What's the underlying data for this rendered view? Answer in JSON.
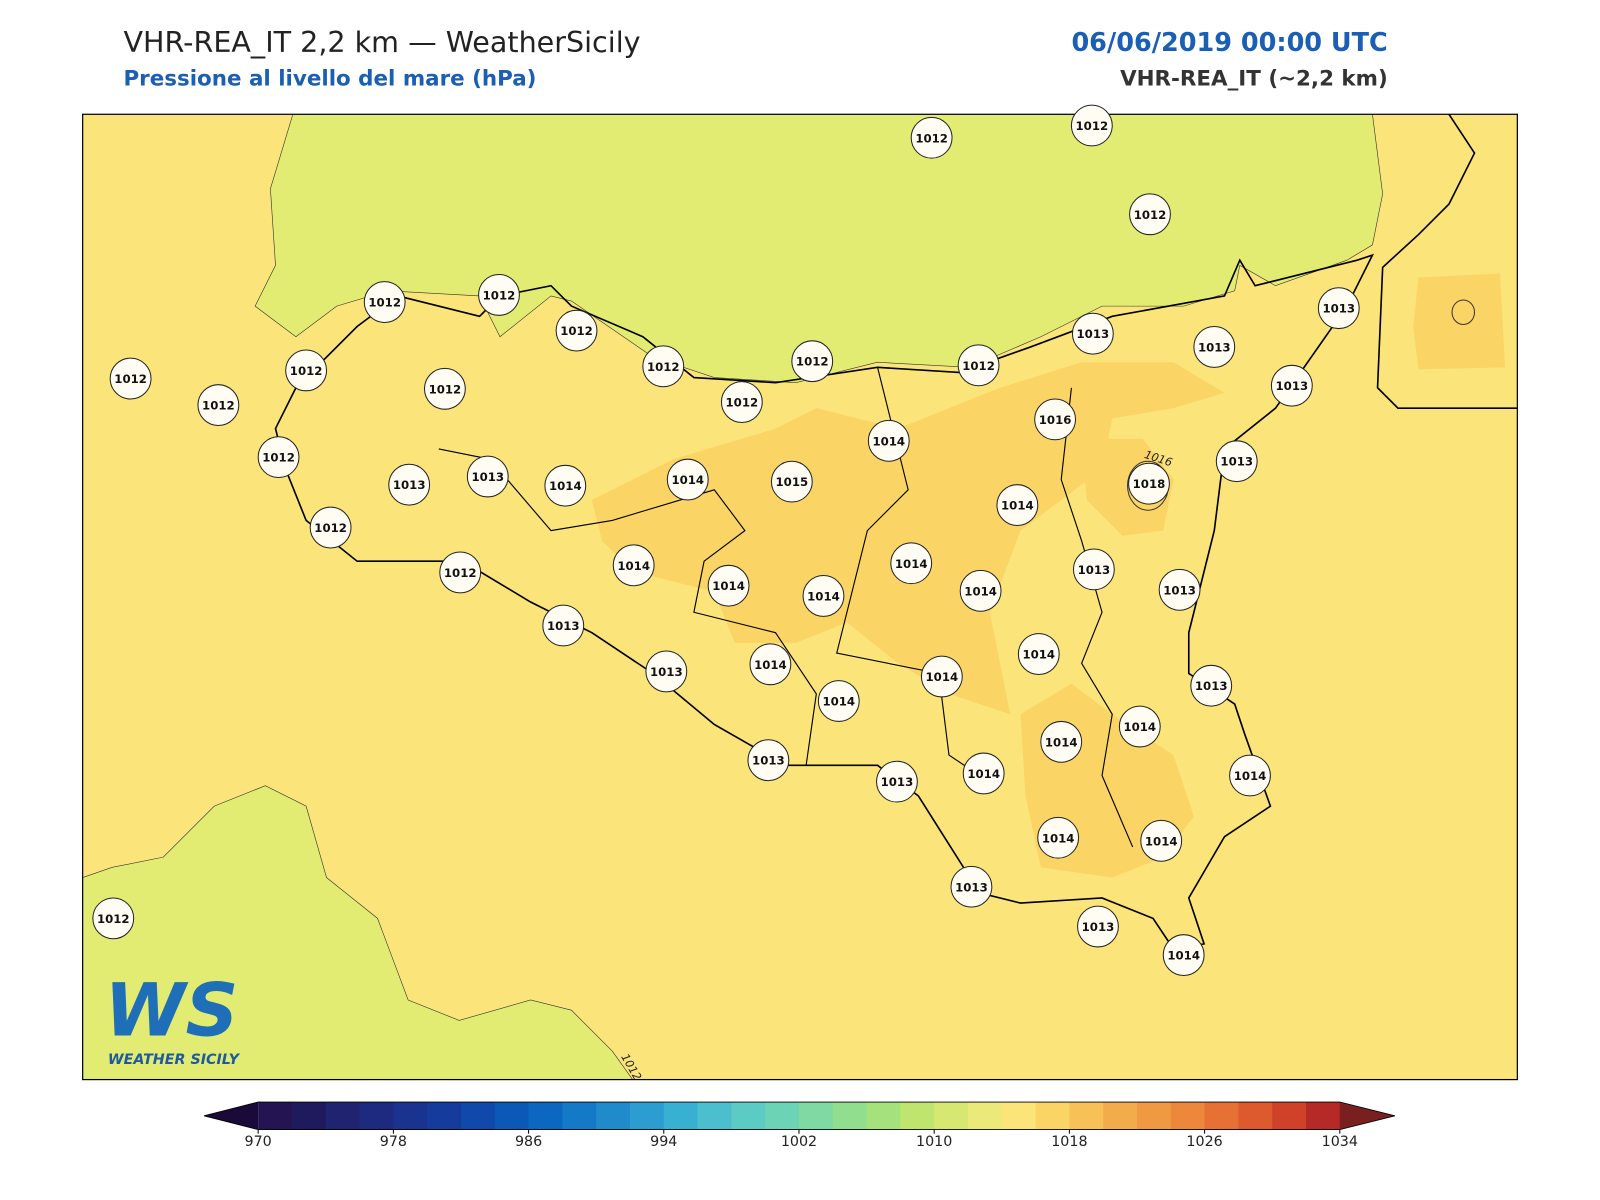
{
  "header": {
    "title": "VHR-REA_IT 2,2 km — WeatherSicily",
    "subtitle": "Pressione al livello del mare (hPa)",
    "timestamp": "06/06/2019 00:00 UTC",
    "model": "VHR-REA_IT (~2,2 km)"
  },
  "map": {
    "stations": [
      1012,
      1012,
      1012,
      1012,
      1012,
      1012,
      1012,
      1012,
      1012,
      1013,
      1013,
      1013,
      1013,
      1012,
      1012,
      1012,
      1012,
      1012,
      1014,
      1016,
      1013,
      1018,
      1012,
      1013,
      1013,
      1014,
      1014,
      1015,
      1014,
      1012,
      1014,
      1014,
      1013,
      1013,
      1014,
      1014,
      1014,
      1012,
      1013,
      1014,
      1013,
      1014,
      1014,
      1013,
      1014,
      1014,
      1014,
      1014,
      1013,
      1013,
      1014,
      1014,
      1014,
      1013,
      1013,
      1014,
      1012
    ],
    "contour_labels": [
      "1016",
      "1012"
    ],
    "colors": {
      "base": "#fbe47a",
      "low": "#e2ec72",
      "high": "#fbd466"
    }
  },
  "logo": {
    "initials": "WS",
    "name": "WEATHER SICILY"
  },
  "colorbar": {
    "lim": [
      970,
      1034
    ],
    "ticks": [
      970,
      978,
      986,
      994,
      1002,
      1010,
      1018,
      1026,
      1034
    ],
    "colors": [
      "#241452",
      "#1f1a5e",
      "#1f2370",
      "#1d2a80",
      "#1a338f",
      "#153c9d",
      "#1049aa",
      "#0c58b6",
      "#0b67bf",
      "#1479c6",
      "#1f8bcb",
      "#2b9dd0",
      "#38b0d2",
      "#4bbfcd",
      "#5ccbc3",
      "#6cd4b4",
      "#7fd9a2",
      "#92de8f",
      "#a6e27c",
      "#bfe56f",
      "#d6e872",
      "#ebe97a",
      "#fbe47a",
      "#fbd466",
      "#f8c158",
      "#f3ac4c",
      "#ef9a42",
      "#ec873b",
      "#e77034",
      "#dd592e",
      "#cf4229",
      "#b52a26"
    ],
    "under": "#1a0a3a",
    "over": "#7a1f1f"
  }
}
